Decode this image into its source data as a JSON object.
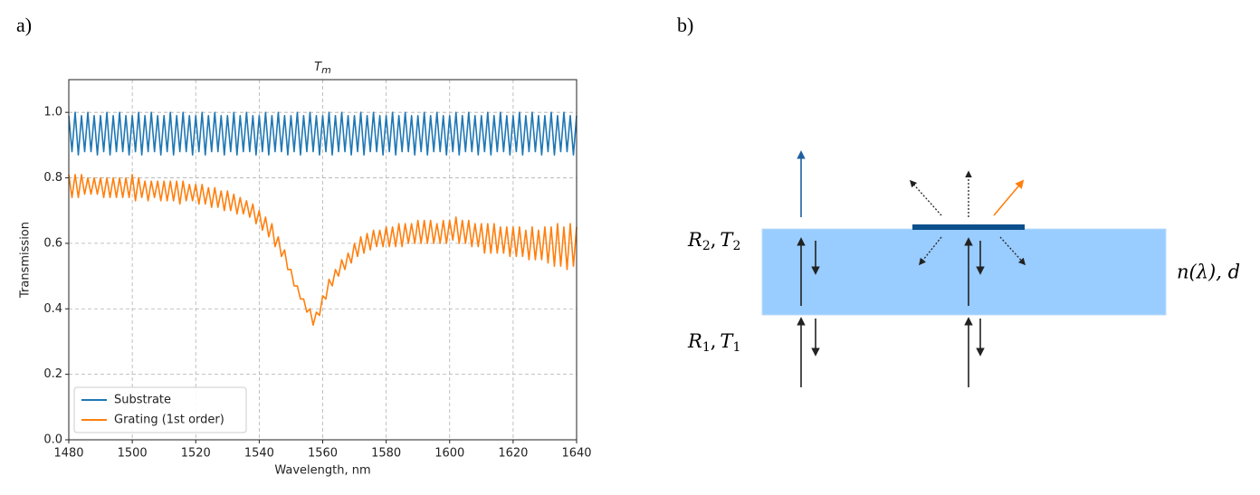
{
  "panels": {
    "a": "a)",
    "b": "b)"
  },
  "chart_data": {
    "type": "line",
    "title": "T",
    "title_sub": "m",
    "xlabel": "Wavelength, nm",
    "ylabel": "Transmission",
    "xlim": [
      1480,
      1640
    ],
    "ylim": [
      0,
      1.1
    ],
    "xticks": [
      1480,
      1500,
      1520,
      1540,
      1560,
      1580,
      1600,
      1620,
      1640
    ],
    "yticks": [
      {
        "value": 0,
        "label": "0.0"
      },
      0.2,
      0.4,
      0.6,
      0.8,
      {
        "value": 1,
        "label": "1.0"
      }
    ],
    "grid": true,
    "legend": "lower left",
    "x": [
      1480,
      1481,
      1482,
      1483,
      1484,
      1485,
      1486,
      1487,
      1488,
      1489,
      1490,
      1491,
      1492,
      1493,
      1494,
      1495,
      1496,
      1497,
      1498,
      1499,
      1500,
      1501,
      1502,
      1503,
      1504,
      1505,
      1506,
      1507,
      1508,
      1509,
      1510,
      1511,
      1512,
      1513,
      1514,
      1515,
      1516,
      1517,
      1518,
      1519,
      1520,
      1521,
      1522,
      1523,
      1524,
      1525,
      1526,
      1527,
      1528,
      1529,
      1530,
      1531,
      1532,
      1533,
      1534,
      1535,
      1536,
      1537,
      1538,
      1539,
      1540,
      1541,
      1542,
      1543,
      1544,
      1545,
      1546,
      1547,
      1548,
      1549,
      1550,
      1551,
      1552,
      1553,
      1554,
      1555,
      1556,
      1557,
      1558,
      1559,
      1560,
      1561,
      1562,
      1563,
      1564,
      1565,
      1566,
      1567,
      1568,
      1569,
      1570,
      1571,
      1572,
      1573,
      1574,
      1575,
      1576,
      1577,
      1578,
      1579,
      1580,
      1581,
      1582,
      1583,
      1584,
      1585,
      1586,
      1587,
      1588,
      1589,
      1590,
      1591,
      1592,
      1593,
      1594,
      1595,
      1596,
      1597,
      1598,
      1599,
      1600,
      1601,
      1602,
      1603,
      1604,
      1605,
      1606,
      1607,
      1608,
      1609,
      1610,
      1611,
      1612,
      1613,
      1614,
      1615,
      1616,
      1617,
      1618,
      1619,
      1620,
      1621,
      1622,
      1623,
      1624,
      1625,
      1626,
      1627,
      1628,
      1629,
      1630,
      1631,
      1632,
      1633,
      1634,
      1635,
      1636,
      1637,
      1638,
      1639,
      1640
    ],
    "series": [
      {
        "name": "Substrate",
        "color": "#1f77b4",
        "values": [
          0.99,
          0.88,
          1.0,
          0.87,
          0.99,
          0.88,
          1.0,
          0.88,
          0.99,
          0.87,
          0.99,
          0.88,
          1.0,
          0.87,
          0.99,
          0.88,
          1.0,
          0.88,
          0.99,
          0.87,
          0.99,
          0.88,
          1.0,
          0.87,
          0.99,
          0.88,
          1.0,
          0.88,
          0.99,
          0.87,
          0.99,
          0.88,
          1.0,
          0.87,
          0.99,
          0.88,
          1.0,
          0.88,
          0.99,
          0.87,
          0.99,
          0.88,
          1.0,
          0.87,
          0.99,
          0.88,
          1.0,
          0.88,
          0.99,
          0.87,
          0.99,
          0.88,
          1.0,
          0.87,
          0.99,
          0.88,
          1.0,
          0.88,
          0.99,
          0.87,
          0.99,
          0.88,
          1.0,
          0.87,
          0.99,
          0.88,
          1.0,
          0.88,
          0.99,
          0.87,
          0.99,
          0.88,
          1.0,
          0.87,
          0.99,
          0.88,
          1.0,
          0.88,
          0.99,
          0.87,
          0.99,
          0.88,
          1.0,
          0.87,
          0.99,
          0.88,
          1.0,
          0.88,
          0.99,
          0.87,
          0.99,
          0.88,
          1.0,
          0.87,
          0.99,
          0.88,
          1.0,
          0.88,
          0.99,
          0.87,
          0.99,
          0.88,
          1.0,
          0.87,
          0.99,
          0.88,
          1.0,
          0.88,
          0.99,
          0.87,
          0.99,
          0.88,
          1.0,
          0.87,
          0.99,
          0.88,
          1.0,
          0.88,
          0.99,
          0.87,
          0.99,
          0.88,
          1.0,
          0.87,
          0.99,
          0.88,
          1.0,
          0.88,
          0.99,
          0.87,
          0.99,
          0.88,
          1.0,
          0.87,
          0.99,
          0.88,
          1.0,
          0.88,
          0.99,
          0.87,
          0.99,
          0.88,
          1.0,
          0.87,
          0.99,
          0.88,
          1.0,
          0.88,
          0.99,
          0.87,
          0.99,
          0.88,
          1.0,
          0.87,
          0.99,
          0.88,
          1.0,
          0.88,
          0.99,
          0.87,
          0.99
        ]
      },
      {
        "name": "Grating (1st order)",
        "color": "#ff7f0e",
        "values": [
          0.81,
          0.74,
          0.81,
          0.74,
          0.81,
          0.75,
          0.8,
          0.75,
          0.8,
          0.75,
          0.8,
          0.74,
          0.8,
          0.74,
          0.8,
          0.74,
          0.8,
          0.74,
          0.8,
          0.74,
          0.81,
          0.73,
          0.8,
          0.74,
          0.79,
          0.73,
          0.79,
          0.74,
          0.79,
          0.73,
          0.79,
          0.73,
          0.79,
          0.73,
          0.79,
          0.72,
          0.79,
          0.73,
          0.78,
          0.73,
          0.78,
          0.72,
          0.78,
          0.72,
          0.77,
          0.71,
          0.77,
          0.71,
          0.76,
          0.7,
          0.76,
          0.7,
          0.75,
          0.69,
          0.74,
          0.69,
          0.73,
          0.68,
          0.72,
          0.66,
          0.7,
          0.64,
          0.68,
          0.62,
          0.66,
          0.59,
          0.62,
          0.56,
          0.58,
          0.52,
          0.52,
          0.47,
          0.47,
          0.43,
          0.43,
          0.39,
          0.4,
          0.35,
          0.39,
          0.38,
          0.44,
          0.43,
          0.49,
          0.47,
          0.52,
          0.5,
          0.55,
          0.52,
          0.57,
          0.54,
          0.6,
          0.56,
          0.62,
          0.57,
          0.63,
          0.58,
          0.64,
          0.59,
          0.64,
          0.59,
          0.65,
          0.59,
          0.65,
          0.59,
          0.66,
          0.59,
          0.66,
          0.6,
          0.66,
          0.6,
          0.67,
          0.6,
          0.67,
          0.6,
          0.67,
          0.6,
          0.66,
          0.6,
          0.67,
          0.6,
          0.67,
          0.61,
          0.68,
          0.6,
          0.67,
          0.6,
          0.67,
          0.59,
          0.66,
          0.59,
          0.66,
          0.57,
          0.66,
          0.57,
          0.66,
          0.57,
          0.65,
          0.57,
          0.65,
          0.56,
          0.65,
          0.56,
          0.65,
          0.56,
          0.64,
          0.55,
          0.65,
          0.55,
          0.64,
          0.55,
          0.65,
          0.54,
          0.65,
          0.53,
          0.66,
          0.53,
          0.65,
          0.52,
          0.66,
          0.53,
          0.65
        ]
      }
    ]
  },
  "diagram": {
    "top_label": {
      "R": "R",
      "R_sub": "2",
      "sep": ",",
      "T": "T",
      "T_sub": "2"
    },
    "bottom_label": {
      "R": "R",
      "R_sub": "1",
      "sep": ",",
      "T": "T",
      "T_sub": "1"
    },
    "layer_label": "n(λ), d"
  }
}
